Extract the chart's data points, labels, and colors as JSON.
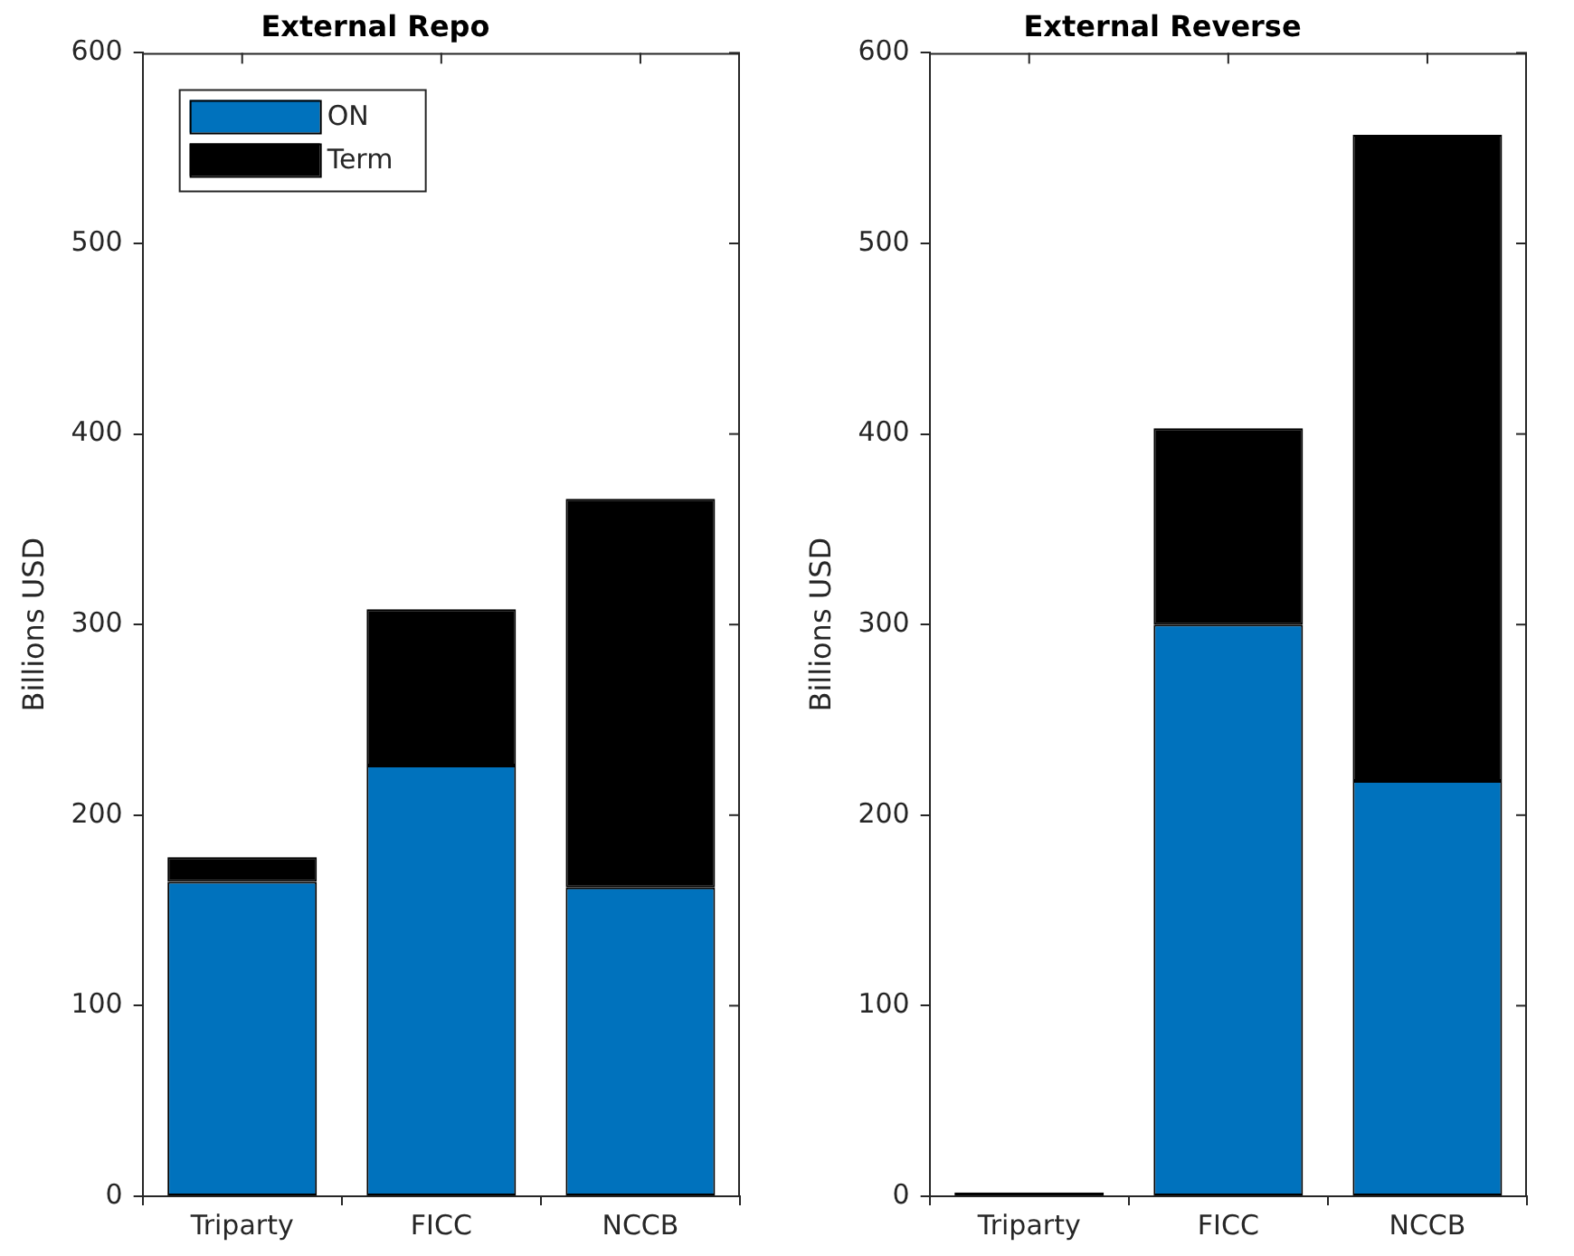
{
  "chart_data": [
    {
      "type": "bar",
      "title": "External Repo",
      "ylabel": "Billions USD",
      "categories": [
        "Triparty",
        "FICC",
        "NCCB"
      ],
      "stacked": true,
      "legend": "top left",
      "grid": false,
      "ylim": [
        0,
        600
      ],
      "yticks": [
        0,
        100,
        200,
        300,
        400,
        500,
        600
      ],
      "series": [
        {
          "name": "ON",
          "color": "#0072bd",
          "values": [
            165,
            226,
            162
          ]
        },
        {
          "name": "Term",
          "color": "#000000",
          "values": [
            13,
            82,
            204
          ]
        }
      ]
    },
    {
      "type": "bar",
      "title": "External Reverse",
      "ylabel": "Billions USD",
      "categories": [
        "Triparty",
        "FICC",
        "NCCB"
      ],
      "stacked": true,
      "legend": false,
      "grid": false,
      "ylim": [
        0,
        600
      ],
      "yticks": [
        0,
        100,
        200,
        300,
        400,
        500,
        600
      ],
      "series": [
        {
          "color": "#0072bd",
          "values": [
            0,
            300,
            218
          ]
        },
        {
          "color": "#000000",
          "values": [
            2,
            103,
            339
          ]
        }
      ]
    }
  ]
}
